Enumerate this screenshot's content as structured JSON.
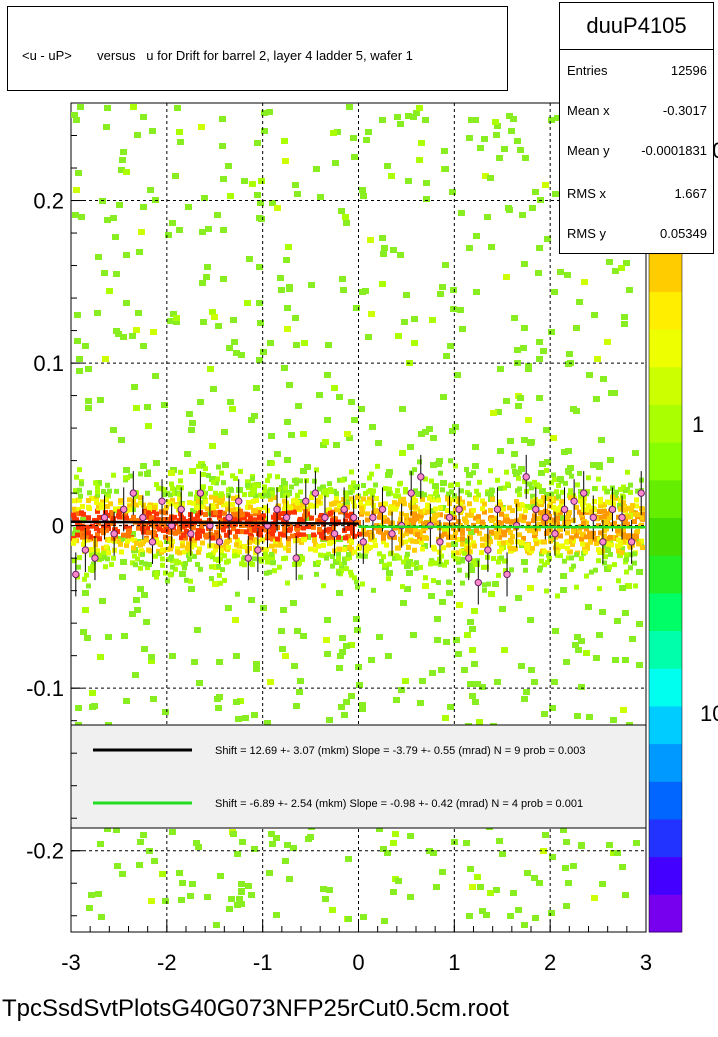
{
  "title": "<u - uP>       versus   u for Drift for barrel 2, layer 4 ladder 5, wafer 1",
  "stats": {
    "name": "duuP4105",
    "rows": [
      {
        "label": "Entries",
        "value": "12596"
      },
      {
        "label": "Mean x",
        "value": "-0.3017"
      },
      {
        "label": "Mean y",
        "value": "-0.0001831"
      },
      {
        "label": "RMS x",
        "value": "1.667"
      },
      {
        "label": "RMS y",
        "value": "0.05349"
      }
    ]
  },
  "footer": "TpcSsdSvtPlotsG40G073NFP25rCut0.5cm.root",
  "colorbar": {
    "labels": [
      "10",
      "1",
      "10"
    ],
    "colors": [
      "#7700ee",
      "#4400ff",
      "#2233ff",
      "#0066ff",
      "#0099ff",
      "#00ccff",
      "#00ffee",
      "#00ffaa",
      "#00ff66",
      "#22ee22",
      "#44dd00",
      "#66ee00",
      "#88ff00",
      "#aaff00",
      "#ccff00",
      "#eeff00",
      "#ffee00",
      "#ffcc00",
      "#ff9900",
      "#ff6600",
      "#ff3300",
      "#ee0000"
    ]
  },
  "chart_data": {
    "type": "heatmap",
    "title": "<u - uP>       versus   u for Drift for barrel 2, layer 4 ladder 5, wafer 1",
    "xlim": [
      -3,
      3
    ],
    "ylim": [
      -0.25,
      0.26
    ],
    "x_ticks": [
      -3,
      -2,
      -1,
      0,
      1,
      2,
      3
    ],
    "x_tick_labels": [
      "-3",
      "-2",
      "-1",
      "0",
      "1",
      "2",
      "3"
    ],
    "y_ticks": [
      -0.2,
      -0.1,
      0,
      0.1,
      0.2
    ],
    "y_tick_labels": [
      "-0.2",
      "-0.1",
      "0",
      "0.1",
      "0.2"
    ],
    "grid": true,
    "band": {
      "center": 0.0,
      "core_halfwidth": 0.03
    },
    "profile_points": [
      [
        -2.95,
        -0.03
      ],
      [
        -2.85,
        -0.015
      ],
      [
        -2.75,
        -0.02
      ],
      [
        -2.65,
        0.005
      ],
      [
        -2.55,
        -0.005
      ],
      [
        -2.45,
        0.01
      ],
      [
        -2.35,
        0.02
      ],
      [
        -2.25,
        0.005
      ],
      [
        -2.15,
        -0.01
      ],
      [
        -2.05,
        0.015
      ],
      [
        -1.95,
        0.0
      ],
      [
        -1.85,
        0.01
      ],
      [
        -1.75,
        -0.005
      ],
      [
        -1.65,
        0.02
      ],
      [
        -1.55,
        0.0
      ],
      [
        -1.45,
        -0.01
      ],
      [
        -1.35,
        0.005
      ],
      [
        -1.25,
        0.015
      ],
      [
        -1.15,
        -0.02
      ],
      [
        -1.05,
        -0.015
      ],
      [
        -0.95,
        0.0
      ],
      [
        -0.85,
        0.01
      ],
      [
        -0.75,
        0.005
      ],
      [
        -0.65,
        -0.02
      ],
      [
        -0.55,
        0.015
      ],
      [
        -0.45,
        0.02
      ],
      [
        -0.35,
        0.005
      ],
      [
        -0.25,
        -0.005
      ],
      [
        -0.15,
        0.01
      ],
      [
        -0.05,
        0.005
      ],
      [
        0.05,
        -0.01
      ],
      [
        0.15,
        0.005
      ],
      [
        0.25,
        0.01
      ],
      [
        0.35,
        -0.005
      ],
      [
        0.45,
        0.0
      ],
      [
        0.55,
        0.02
      ],
      [
        0.65,
        0.03
      ],
      [
        0.75,
        0.0
      ],
      [
        0.85,
        -0.01
      ],
      [
        0.95,
        0.005
      ],
      [
        1.05,
        0.01
      ],
      [
        1.15,
        -0.02
      ],
      [
        1.25,
        -0.035
      ],
      [
        1.35,
        -0.015
      ],
      [
        1.45,
        0.01
      ],
      [
        1.55,
        -0.03
      ],
      [
        1.65,
        0.0
      ],
      [
        1.75,
        0.03
      ],
      [
        1.85,
        0.01
      ],
      [
        1.95,
        0.005
      ],
      [
        2.05,
        -0.005
      ],
      [
        2.15,
        0.01
      ],
      [
        2.25,
        0.015
      ],
      [
        2.35,
        0.02
      ],
      [
        2.45,
        0.005
      ],
      [
        2.55,
        -0.01
      ],
      [
        2.65,
        0.01
      ],
      [
        2.75,
        0.005
      ],
      [
        2.85,
        -0.01
      ],
      [
        2.95,
        0.02
      ]
    ],
    "series": [
      {
        "name": "Shift =    12.69 +- 3.07 (mkm) Slope =    -3.79 +- 0.55 (mrad)  N = 9 prob = 0.003",
        "color": "#000000",
        "x_range": [
          -3,
          0
        ],
        "shift_um": 12.69,
        "slope_mrad": -3.79
      },
      {
        "name": "Shift =    -6.89 +- 2.54 (mkm) Slope =    -0.98 +- 0.42 (mrad)  N = 4 prob = 0.001",
        "color": "#22dd22",
        "x_range": [
          0,
          3
        ],
        "shift_um": -6.89,
        "slope_mrad": -0.98
      }
    ]
  }
}
